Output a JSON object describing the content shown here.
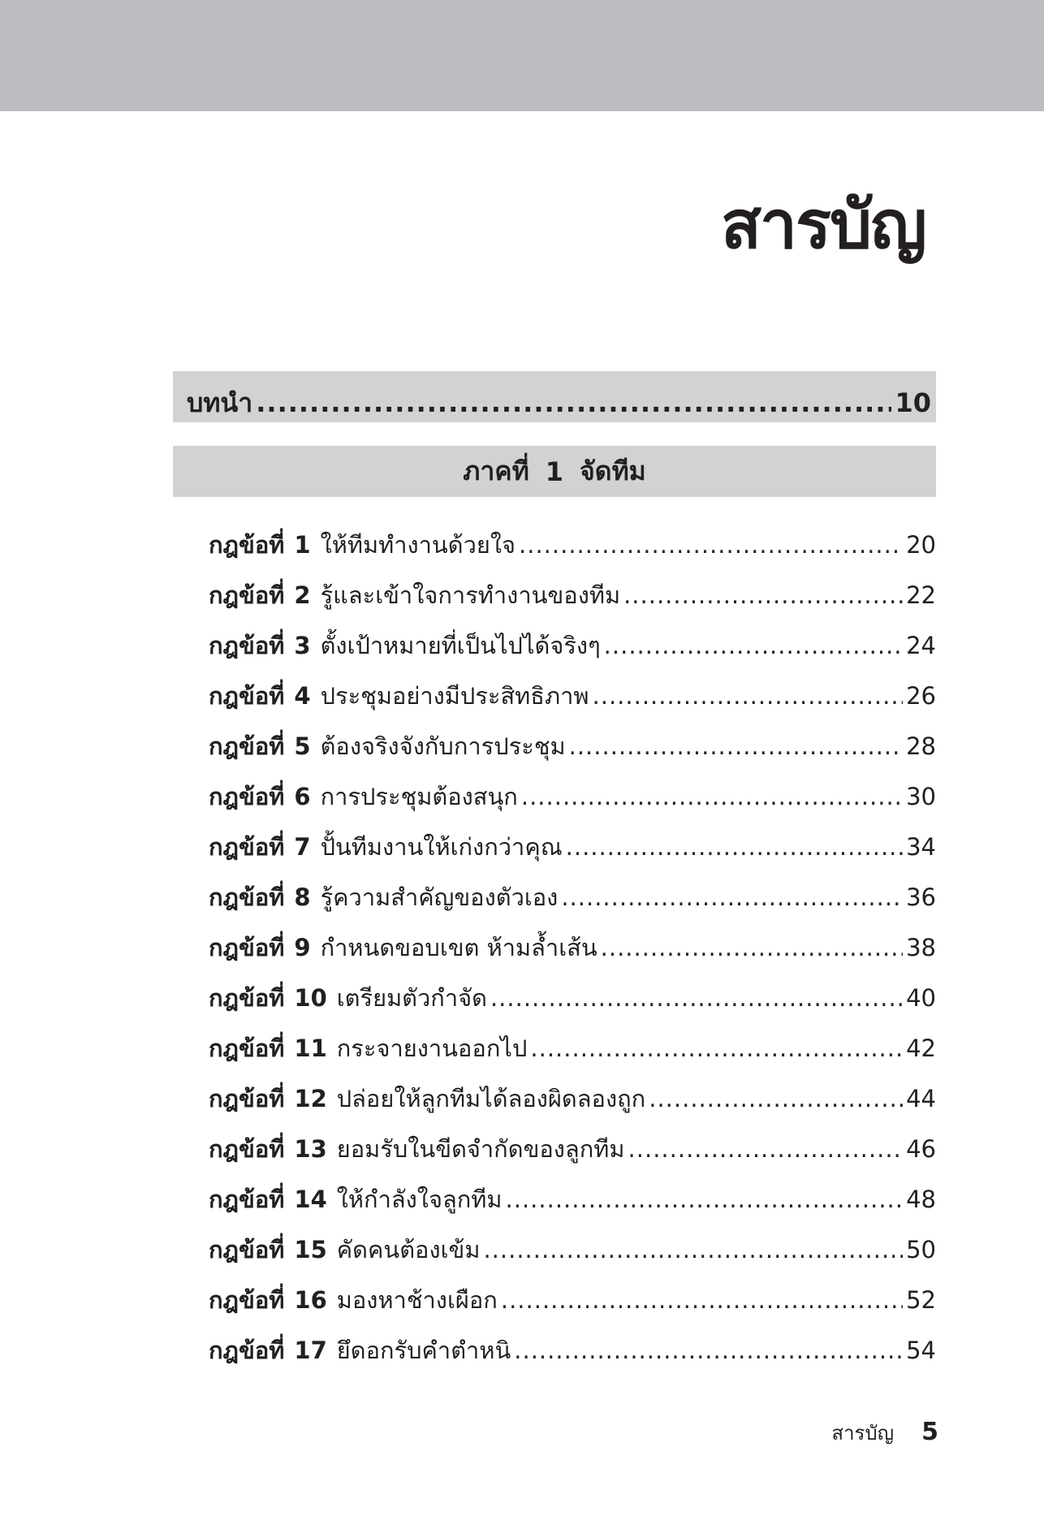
{
  "title": "สารบัญ",
  "intro": {
    "label": "บทนำ",
    "page": "10"
  },
  "section": {
    "label": "ภาคที่",
    "number": "1",
    "name": "จัดทีม"
  },
  "rule_label": "กฎข้อที่",
  "entries": [
    {
      "num": "1",
      "text": "ให้ทีมทำงานด้วยใจ",
      "page": "20"
    },
    {
      "num": "2",
      "text": "รู้และเข้าใจการทำงานของทีม",
      "page": "22"
    },
    {
      "num": "3",
      "text": "ตั้งเป้าหมายที่เป็นไปได้จริงๆ",
      "page": "24"
    },
    {
      "num": "4",
      "text": "ประชุมอย่างมีประสิทธิภาพ",
      "page": "26"
    },
    {
      "num": "5",
      "text": "ต้องจริงจังกับการประชุม",
      "page": "28"
    },
    {
      "num": "6",
      "text": "การประชุมต้องสนุก",
      "page": "30"
    },
    {
      "num": "7",
      "text": "ปั้นทีมงานให้เก่งกว่าคุณ",
      "page": "34"
    },
    {
      "num": "8",
      "text": "รู้ความสำคัญของตัวเอง",
      "page": "36"
    },
    {
      "num": "9",
      "text": "กำหนดขอบเขต ห้ามล้ำเส้น",
      "page": "38"
    },
    {
      "num": "10",
      "text": "เตรียมตัวกำจัด",
      "page": "40"
    },
    {
      "num": "11",
      "text": "กระจายงานออกไป",
      "page": "42"
    },
    {
      "num": "12",
      "text": "ปล่อยให้ลูกทีมได้ลองผิดลองถูก",
      "page": "44"
    },
    {
      "num": "13",
      "text": "ยอมรับในขีดจำกัดของลูกทีม",
      "page": "46"
    },
    {
      "num": "14",
      "text": "ให้กำลังใจลูกทีม",
      "page": "48"
    },
    {
      "num": "15",
      "text": "คัดคนต้องเข้ม",
      "page": "50"
    },
    {
      "num": "16",
      "text": "มองหาช้างเผือก",
      "page": "52"
    },
    {
      "num": "17",
      "text": "ยึดอกรับคำตำหนิ",
      "page": "54"
    }
  ],
  "footer": {
    "title": "สารบัญ",
    "page_number": "5"
  },
  "colors": {
    "band": "#bcbdc0",
    "bar": "#d1d2d4",
    "text": "#231f20"
  }
}
